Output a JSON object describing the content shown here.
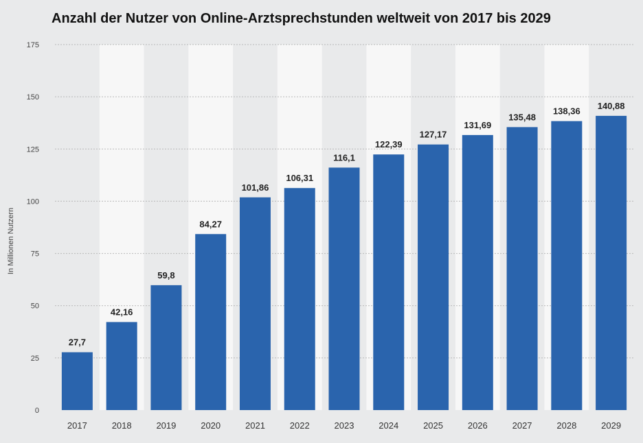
{
  "chart_data": {
    "type": "bar",
    "title": "Anzahl der Nutzer von Online-Arztsprechstunden weltweit von 2017 bis 2029",
    "xlabel": "",
    "ylabel": "In Millionen Nutzern",
    "categories": [
      "2017",
      "2018",
      "2019",
      "2020",
      "2021",
      "2022",
      "2023",
      "2024",
      "2025",
      "2026",
      "2027",
      "2028",
      "2029"
    ],
    "values": [
      27.7,
      42.16,
      59.8,
      84.27,
      101.86,
      106.31,
      116.1,
      122.39,
      127.17,
      131.69,
      135.48,
      138.36,
      140.88
    ],
    "value_labels": [
      "27,7",
      "42,16",
      "59,8",
      "84,27",
      "101,86",
      "106,31",
      "116,1",
      "122,39",
      "127,17",
      "131,69",
      "135,48",
      "138,36",
      "140,88"
    ],
    "ylim": [
      0,
      175
    ],
    "yticks": [
      0,
      25,
      50,
      75,
      100,
      125,
      150,
      175
    ],
    "grid": true,
    "colors": {
      "bar": "#2a64ad",
      "background": "#e9eaeb",
      "band": "#f7f7f7",
      "grid": "#b8b8b8"
    }
  }
}
